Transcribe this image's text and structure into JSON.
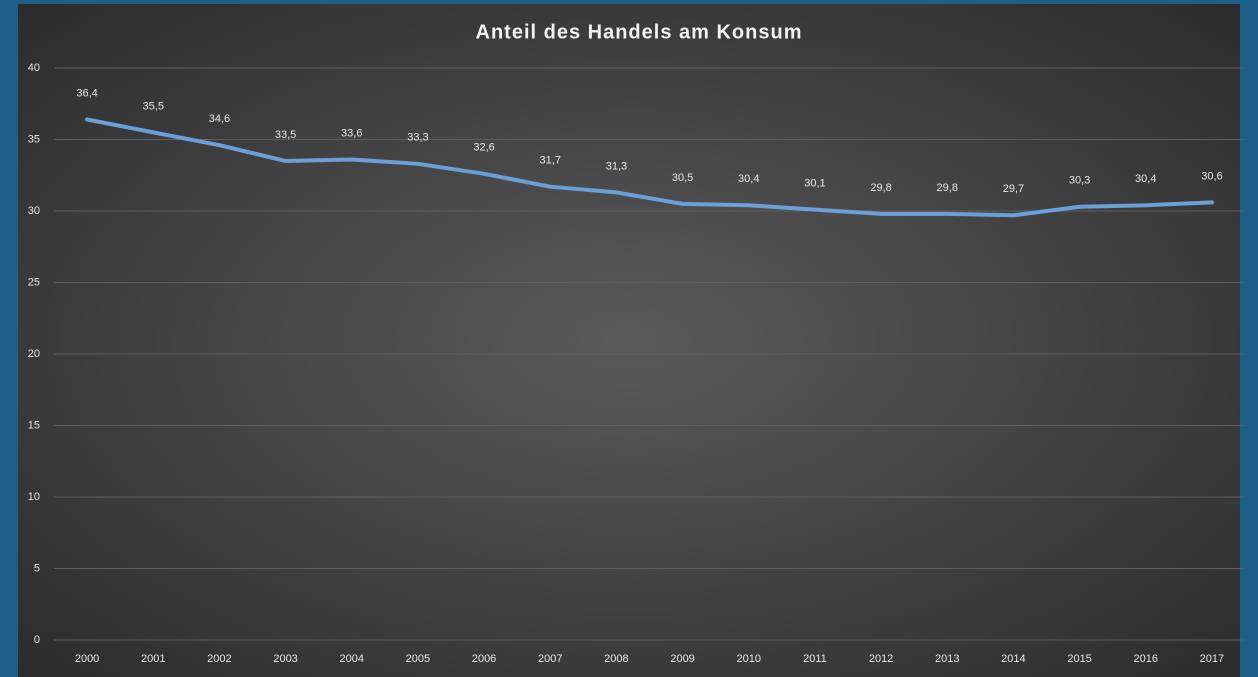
{
  "chart_data": {
    "type": "line",
    "title": "Anteil des Handels am Konsum",
    "categories": [
      "2000",
      "2001",
      "2002",
      "2003",
      "2004",
      "2005",
      "2006",
      "2007",
      "2008",
      "2009",
      "2010",
      "2011",
      "2012",
      "2013",
      "2014",
      "2015",
      "2016",
      "2017"
    ],
    "values": [
      36.4,
      35.5,
      34.6,
      33.5,
      33.6,
      33.3,
      32.6,
      31.7,
      31.3,
      30.5,
      30.4,
      30.1,
      29.8,
      29.8,
      29.7,
      30.3,
      30.4,
      30.6
    ],
    "value_labels": [
      "36,4",
      "35,5",
      "34,6",
      "33,5",
      "33,6",
      "33,3",
      "32,6",
      "31,7",
      "31,3",
      "30,5",
      "30,4",
      "30,1",
      "29,8",
      "29,8",
      "29,7",
      "30,3",
      "30,4",
      "30,6"
    ],
    "color": "#6a9fd8",
    "ylim": [
      0,
      40
    ],
    "yticks": [
      0,
      5,
      10,
      15,
      20,
      25,
      30,
      35,
      40
    ],
    "grid": true
  }
}
